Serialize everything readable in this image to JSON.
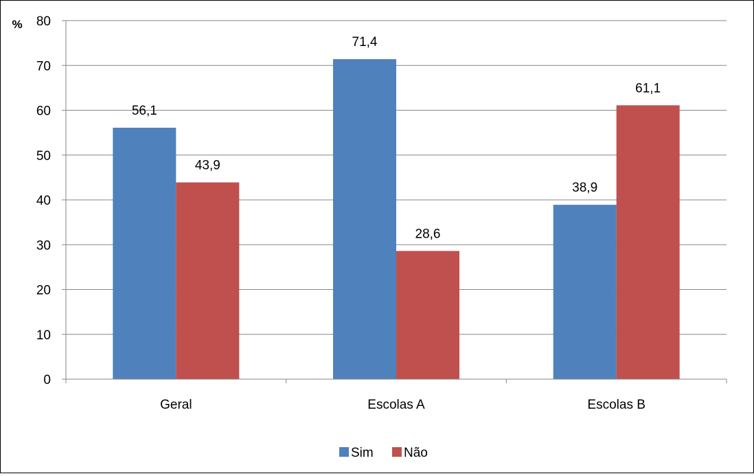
{
  "chart_data": {
    "type": "bar",
    "title": "",
    "xlabel": "",
    "ylabel": "%",
    "ylim": [
      0,
      80
    ],
    "ytick_step": 10,
    "yticks": [
      "0",
      "10",
      "20",
      "30",
      "40",
      "50",
      "60",
      "70",
      "80"
    ],
    "grid": true,
    "legend_position": "bottom",
    "categories": [
      "Geral",
      "Escolas A",
      "Escolas B"
    ],
    "series": [
      {
        "name": "Sim",
        "color": "#4F81BD",
        "values": [
          56.1,
          71.4,
          38.9
        ],
        "labels": [
          "56,1",
          "71,4",
          "38,9"
        ]
      },
      {
        "name": "Não",
        "color": "#C0504D",
        "values": [
          43.9,
          28.6,
          61.1
        ],
        "labels": [
          "43,9",
          "28,6",
          "61,1"
        ]
      }
    ]
  }
}
